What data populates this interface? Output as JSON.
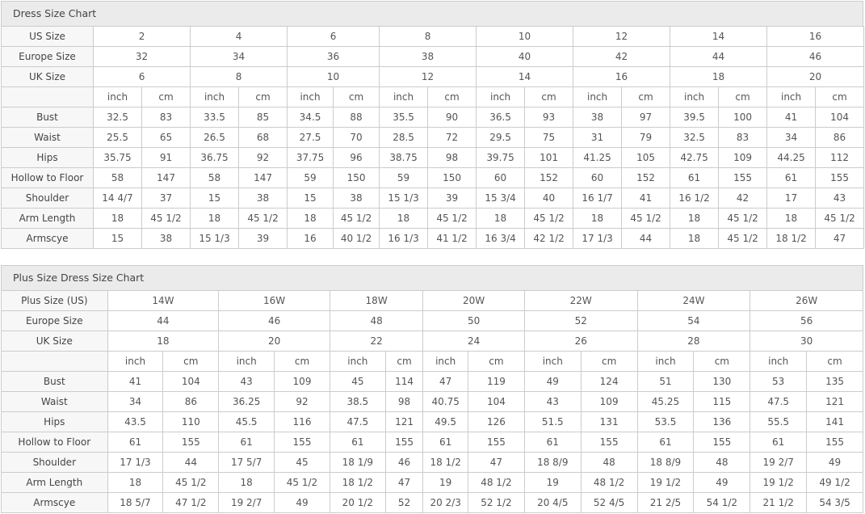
{
  "tables": [
    {
      "title": "Dress Size Chart",
      "size_rows": [
        {
          "label": "US Size",
          "values": [
            "2",
            "4",
            "6",
            "8",
            "10",
            "12",
            "14",
            "16"
          ]
        },
        {
          "label": "Europe Size",
          "values": [
            "32",
            "34",
            "36",
            "38",
            "40",
            "42",
            "44",
            "46"
          ]
        },
        {
          "label": "UK Size",
          "values": [
            "6",
            "8",
            "10",
            "12",
            "14",
            "16",
            "18",
            "20"
          ]
        }
      ],
      "units": [
        "inch",
        "cm"
      ],
      "measurements": [
        {
          "label": "Bust",
          "values": [
            "32.5",
            "83",
            "33.5",
            "85",
            "34.5",
            "88",
            "35.5",
            "90",
            "36.5",
            "93",
            "38",
            "97",
            "39.5",
            "100",
            "41",
            "104"
          ]
        },
        {
          "label": "Waist",
          "values": [
            "25.5",
            "65",
            "26.5",
            "68",
            "27.5",
            "70",
            "28.5",
            "72",
            "29.5",
            "75",
            "31",
            "79",
            "32.5",
            "83",
            "34",
            "86"
          ]
        },
        {
          "label": "Hips",
          "values": [
            "35.75",
            "91",
            "36.75",
            "92",
            "37.75",
            "96",
            "38.75",
            "98",
            "39.75",
            "101",
            "41.25",
            "105",
            "42.75",
            "109",
            "44.25",
            "112"
          ]
        },
        {
          "label": "Hollow to Floor",
          "values": [
            "58",
            "147",
            "58",
            "147",
            "59",
            "150",
            "59",
            "150",
            "60",
            "152",
            "60",
            "152",
            "61",
            "155",
            "61",
            "155"
          ]
        },
        {
          "label": "Shoulder",
          "values": [
            "14 4/7",
            "37",
            "15",
            "38",
            "15",
            "38",
            "15 1/3",
            "39",
            "15 3/4",
            "40",
            "16 1/7",
            "41",
            "16 1/2",
            "42",
            "17",
            "43"
          ]
        },
        {
          "label": "Arm Length",
          "values": [
            "18",
            "45 1/2",
            "18",
            "45 1/2",
            "18",
            "45 1/2",
            "18",
            "45 1/2",
            "18",
            "45 1/2",
            "18",
            "45 1/2",
            "18",
            "45 1/2",
            "18",
            "45 1/2"
          ]
        },
        {
          "label": "Armscye",
          "values": [
            "15",
            "38",
            "15 1/3",
            "39",
            "16",
            "40 1/2",
            "16 1/3",
            "41 1/2",
            "16 3/4",
            "42 1/2",
            "17 1/3",
            "44",
            "18",
            "45 1/2",
            "18 1/2",
            "47"
          ]
        }
      ]
    },
    {
      "title": "Plus Size Dress Size Chart",
      "size_rows": [
        {
          "label": "Plus Size (US)",
          "values": [
            "14W",
            "16W",
            "18W",
            "20W",
            "22W",
            "24W",
            "26W"
          ]
        },
        {
          "label": "Europe Size",
          "values": [
            "44",
            "46",
            "48",
            "50",
            "52",
            "54",
            "56"
          ]
        },
        {
          "label": "UK Size",
          "values": [
            "18",
            "20",
            "22",
            "24",
            "26",
            "28",
            "30"
          ]
        }
      ],
      "units": [
        "inch",
        "cm"
      ],
      "measurements": [
        {
          "label": "Bust",
          "values": [
            "41",
            "104",
            "43",
            "109",
            "45",
            "114",
            "47",
            "119",
            "49",
            "124",
            "51",
            "130",
            "53",
            "135"
          ]
        },
        {
          "label": "Waist",
          "values": [
            "34",
            "86",
            "36.25",
            "92",
            "38.5",
            "98",
            "40.75",
            "104",
            "43",
            "109",
            "45.25",
            "115",
            "47.5",
            "121"
          ]
        },
        {
          "label": "Hips",
          "values": [
            "43.5",
            "110",
            "45.5",
            "116",
            "47.5",
            "121",
            "49.5",
            "126",
            "51.5",
            "131",
            "53.5",
            "136",
            "55.5",
            "141"
          ]
        },
        {
          "label": "Hollow to Floor",
          "values": [
            "61",
            "155",
            "61",
            "155",
            "61",
            "155",
            "61",
            "155",
            "61",
            "155",
            "61",
            "155",
            "61",
            "155"
          ]
        },
        {
          "label": "Shoulder",
          "values": [
            "17 1/3",
            "44",
            "17 5/7",
            "45",
            "18 1/9",
            "46",
            "18 1/2",
            "47",
            "18 8/9",
            "48",
            "18 8/9",
            "48",
            "19 2/7",
            "49"
          ]
        },
        {
          "label": "Arm Length",
          "values": [
            "18",
            "45 1/2",
            "18",
            "45 1/2",
            "18 1/2",
            "47",
            "19",
            "48 1/2",
            "19",
            "48 1/2",
            "19 1/2",
            "49",
            "19 1/2",
            "49 1/2"
          ]
        },
        {
          "label": "Armscye",
          "values": [
            "18 5/7",
            "47 1/2",
            "19 2/7",
            "49",
            "20 1/2",
            "52",
            "20 2/3",
            "52 1/2",
            "20 4/5",
            "52 4/5",
            "21 2/5",
            "54 1/2",
            "21 1/2",
            "54 3/5"
          ]
        }
      ]
    }
  ]
}
